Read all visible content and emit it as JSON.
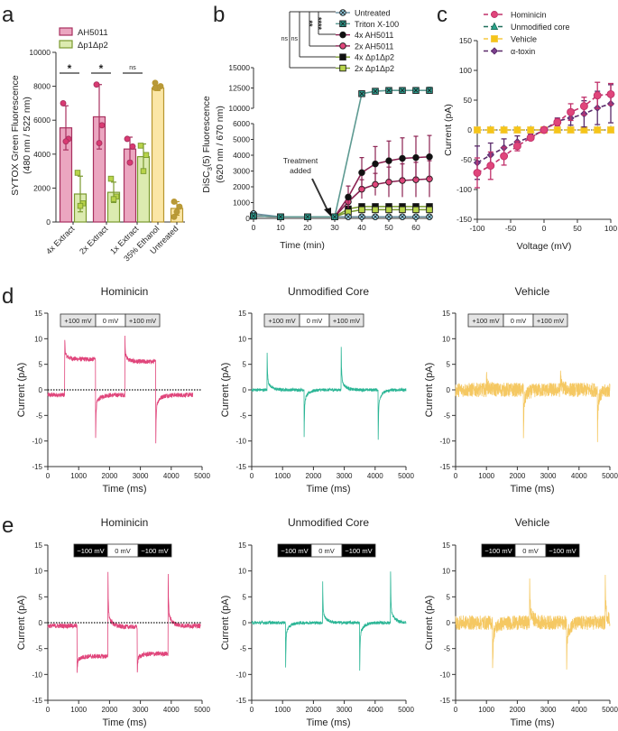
{
  "panel_labels": {
    "a": "a",
    "b": "b",
    "c": "c",
    "d": "d",
    "e": "e"
  },
  "chart_data": [
    {
      "id": "a",
      "type": "bar",
      "ylabel": [
        "SYTOX Green Fluorescence",
        "(480 nm / 522 nm)"
      ],
      "ylim": [
        0,
        10000
      ],
      "yticks": [
        0,
        2000,
        4000,
        6000,
        8000,
        10000
      ],
      "categories": [
        "4x Extract",
        "2x Extract",
        "1x Extract",
        "35% Ethanol",
        "Untreated"
      ],
      "legend": [
        "AH5011",
        "Δp1Δp2"
      ],
      "significance": [
        "*",
        "*",
        "ns"
      ],
      "series": [
        {
          "name": "AH5011",
          "fill": "#eba6c0",
          "stroke": "#a8305f",
          "dot": "#d93a72",
          "values": [
            5550,
            6200,
            4300,
            null,
            null
          ],
          "errors": [
            1300,
            1900,
            700,
            null,
            null
          ],
          "points": [
            [
              7000,
              4900,
              4750
            ],
            [
              8100,
              5700,
              4650
            ],
            [
              4900,
              4450,
              3500
            ],
            null,
            null
          ]
        },
        {
          "name": "Δp1Δp2",
          "fill": "#dcebb0",
          "stroke": "#7a9a2e",
          "dot": "#b8d34a",
          "values": [
            1650,
            1750,
            3850,
            null,
            null
          ],
          "errors": [
            1050,
            600,
            750,
            null,
            null
          ],
          "points": [
            [
              2900,
              1100,
              950
            ],
            [
              2550,
              1500,
              1350
            ],
            [
              4500,
              3950,
              3000
            ],
            null,
            null
          ]
        },
        {
          "fill": "#fbe6a6",
          "stroke": "#b8962e",
          "dot": "#b89a3a",
          "values": [
            null,
            null,
            null,
            7900,
            800
          ],
          "errors": [
            null,
            null,
            null,
            150,
            400
          ],
          "points": [
            null,
            null,
            null,
            [
              8200,
              8000,
              7900,
              7900
            ],
            [
              1200,
              900,
              600,
              300
            ]
          ]
        }
      ]
    },
    {
      "id": "b",
      "type": "line",
      "xlabel": "Time (min)",
      "ylabel_prefix": "DiSC",
      "ylabel_sub": "3",
      "ylabel_suffix": "(5) Fluorescence",
      "ylabel2": "(620 nm / 670 nm)",
      "xlim": [
        0,
        65
      ],
      "xticks": [
        0,
        10,
        20,
        30,
        40,
        50,
        60
      ],
      "yticks_lower": [
        0,
        1000,
        2000,
        3000,
        4000,
        5000,
        6000
      ],
      "yticks_upper": [
        10000,
        12500,
        15000
      ],
      "y_axis_break": [
        6000,
        10000
      ],
      "annotation": [
        "Treatment",
        "added"
      ],
      "brackets": [
        "****",
        "**",
        "ns",
        "ns"
      ],
      "x": [
        0,
        10,
        20,
        30,
        35,
        40,
        45,
        50,
        55,
        60,
        65
      ],
      "series": [
        {
          "name": "Untreated",
          "line": "#6a8fa0",
          "fill": "#9ad8ee",
          "marker": "circle-x",
          "values": [
            300,
            100,
            100,
            100,
            100,
            100,
            100,
            100,
            100,
            100,
            100
          ],
          "errors": [
            60,
            0,
            0,
            0,
            0,
            0,
            0,
            0,
            0,
            0,
            0
          ]
        },
        {
          "name": "Triton X-100",
          "line": "#5e9a92",
          "fill": "#2a9d8f",
          "marker": "square-x",
          "values": [
            150,
            100,
            100,
            100,
            null,
            11800,
            12100,
            12200,
            12200,
            12200,
            12200
          ],
          "errors": [
            0,
            0,
            0,
            0,
            null,
            200,
            200,
            250,
            300,
            350,
            400
          ]
        },
        {
          "name": "4x AH5011",
          "line": "#8b2252",
          "fill": "#111111",
          "marker": "circle",
          "values": [
            150,
            100,
            100,
            100,
            1350,
            2900,
            3450,
            3650,
            3800,
            3850,
            3900
          ],
          "errors": [
            0,
            0,
            0,
            0,
            700,
            950,
            1100,
            1250,
            1300,
            1350,
            1350
          ]
        },
        {
          "name": "2x AH5011",
          "line": "#8b2252",
          "fill": "#e0457b",
          "marker": "circle",
          "values": [
            150,
            100,
            100,
            100,
            1050,
            1850,
            2150,
            2300,
            2400,
            2450,
            2500
          ],
          "errors": [
            0,
            0,
            0,
            0,
            400,
            600,
            700,
            950,
            1050,
            1100,
            1150
          ]
        },
        {
          "name": "4x Δp1Δp2",
          "line": "#7a9a2e",
          "fill": "#111111",
          "marker": "square",
          "values": [
            150,
            100,
            100,
            100,
            600,
            750,
            750,
            750,
            750,
            750,
            750
          ],
          "errors": [
            0,
            0,
            0,
            0,
            80,
            80,
            80,
            80,
            80,
            80,
            80
          ]
        },
        {
          "name": "2x Δp1Δp2",
          "line": "#7a9a2e",
          "fill": "#b9d64a",
          "marker": "square",
          "values": [
            150,
            100,
            100,
            100,
            400,
            550,
            550,
            550,
            550,
            550,
            550
          ],
          "errors": [
            0,
            0,
            0,
            0,
            60,
            60,
            60,
            60,
            60,
            60,
            60
          ]
        }
      ]
    },
    {
      "id": "c",
      "type": "line",
      "xlabel": "Voltage (mV)",
      "ylabel": "Current (pA)",
      "xlim": [
        -100,
        100
      ],
      "ylim": [
        -150,
        150
      ],
      "xticks": [
        -100,
        -50,
        0,
        50,
        100
      ],
      "yticks": [
        -150,
        -100,
        -50,
        0,
        50,
        100,
        150
      ],
      "x": [
        -100,
        -80,
        -60,
        -40,
        -20,
        0,
        20,
        40,
        60,
        80,
        100
      ],
      "series": [
        {
          "name": "Hominicin",
          "color": "#c0306a",
          "fill": "#e0457b",
          "marker": "circle",
          "values": [
            -72,
            -60,
            -44,
            -27,
            -13,
            0,
            13,
            30,
            40,
            58,
            60
          ],
          "errors": [
            25,
            23,
            15,
            8,
            3,
            2,
            6,
            14,
            15,
            22,
            18
          ]
        },
        {
          "name": "Unmodified core",
          "color": "#1f6f5a",
          "fill": "#2aa58d",
          "marker": "triangle",
          "values": [
            0,
            0,
            0,
            0,
            0,
            0,
            0,
            0,
            0,
            0,
            0
          ],
          "errors": [
            0,
            0,
            0,
            0,
            0,
            0,
            0,
            0,
            0,
            0,
            0
          ]
        },
        {
          "name": "Vehicle",
          "color": "#f5c842",
          "fill": "#f5c518",
          "marker": "square",
          "values": [
            0,
            0,
            0,
            0,
            0,
            0,
            0,
            0,
            0,
            0,
            0
          ],
          "errors": [
            0,
            0,
            0,
            0,
            0,
            0,
            0,
            0,
            0,
            0,
            0
          ]
        },
        {
          "name": "α-toxin",
          "color": "#5a2a6a",
          "fill": "#7b3f8c",
          "marker": "diamond",
          "values": [
            -55,
            -42,
            -30,
            -20,
            -12,
            0,
            15,
            20,
            27,
            37,
            44
          ],
          "errors": [
            28,
            20,
            15,
            10,
            5,
            2,
            5,
            12,
            22,
            28,
            32
          ]
        }
      ]
    },
    {
      "id": "d1",
      "type": "line",
      "title": "Hominicin",
      "xlabel": "Time (ms)",
      "ylabel": "Current (pA)",
      "xlim": [
        0,
        5000
      ],
      "ylim": [
        -15,
        15
      ],
      "xticks": [
        0,
        1000,
        2000,
        3000,
        4000,
        5000
      ],
      "yticks": [
        -15,
        -10,
        -5,
        0,
        5,
        10,
        15
      ],
      "protocol": [
        "+100 mV",
        "0 mV",
        "+100 mV"
      ],
      "protocol_colors": [
        "#e4e4e4",
        "#ffffff",
        "#e4e4e4"
      ],
      "protocol_text": "#222222",
      "color": "#e0457b",
      "zero_line": true,
      "noise": 0.45,
      "end": 4700,
      "segments": [
        [
          0,
          550,
          -1
        ],
        [
          550,
          1550,
          6
        ],
        [
          1550,
          2500,
          -1
        ],
        [
          2500,
          3500,
          5.5
        ],
        [
          3500,
          4700,
          -1
        ]
      ],
      "spikes": [
        [
          550,
          10
        ],
        [
          1550,
          -9
        ],
        [
          2500,
          10.5
        ],
        [
          3500,
          -10
        ]
      ]
    },
    {
      "id": "d2",
      "type": "line",
      "title": "Unmodified Core",
      "xlabel": "Time (ms)",
      "ylabel": "Current (pA)",
      "xlim": [
        0,
        5000
      ],
      "ylim": [
        -15,
        15
      ],
      "xticks": [
        0,
        1000,
        2000,
        3000,
        4000,
        5000
      ],
      "yticks": [
        -15,
        -10,
        -5,
        0,
        5,
        10,
        15
      ],
      "protocol": [
        "+100 mV",
        "0 mV",
        "+100 mV"
      ],
      "protocol_colors": [
        "#e4e4e4",
        "#ffffff",
        "#e4e4e4"
      ],
      "protocol_text": "#222222",
      "color": "#2ab595",
      "zero_line": false,
      "noise": 0.3,
      "end": 5000,
      "segments": [
        [
          0,
          5000,
          0
        ]
      ],
      "spikes": [
        [
          500,
          7.5
        ],
        [
          1700,
          -9
        ],
        [
          2900,
          8.5
        ],
        [
          4100,
          -10
        ]
      ]
    },
    {
      "id": "d3",
      "type": "line",
      "title": "Vehicle",
      "xlabel": "Time (ms)",
      "ylabel": "Current (pA)",
      "xlim": [
        0,
        5000
      ],
      "ylim": [
        -15,
        15
      ],
      "xticks": [
        0,
        1000,
        2000,
        3000,
        4000,
        5000
      ],
      "yticks": [
        -15,
        -10,
        -5,
        0,
        5,
        10,
        15
      ],
      "protocol": [
        "+100 mV",
        "0 mV",
        "+100 mV"
      ],
      "protocol_colors": [
        "#e4e4e4",
        "#ffffff",
        "#e4e4e4"
      ],
      "protocol_text": "#222222",
      "color": "#f5c862",
      "zero_line": false,
      "noise": 1.4,
      "end": 5000,
      "segments": [
        [
          0,
          5000,
          0
        ]
      ],
      "spikes": [
        [
          1000,
          3
        ],
        [
          2200,
          -9
        ],
        [
          3400,
          4
        ],
        [
          4600,
          -9
        ]
      ]
    },
    {
      "id": "e1",
      "type": "line",
      "title": "Hominicin",
      "xlabel": "Time (ms)",
      "ylabel": "Current (pA)",
      "xlim": [
        0,
        5000
      ],
      "ylim": [
        -15,
        15
      ],
      "xticks": [
        0,
        1000,
        2000,
        3000,
        4000,
        5000
      ],
      "yticks": [
        -15,
        -10,
        -5,
        0,
        5,
        10,
        15
      ],
      "protocol": [
        "−100 mV",
        "0 mV",
        "−100 mV"
      ],
      "protocol_colors": [
        "#000000",
        "#ffffff",
        "#000000"
      ],
      "protocol_text": "#ffffff",
      "color": "#e0457b",
      "zero_line": true,
      "noise": 0.45,
      "end": 4950,
      "segments": [
        [
          0,
          950,
          -0.6
        ],
        [
          950,
          1950,
          -6.5
        ],
        [
          1950,
          2900,
          -0.8
        ],
        [
          2900,
          3900,
          -6
        ],
        [
          3900,
          4950,
          -0.6
        ]
      ],
      "spikes": [
        [
          950,
          -10
        ],
        [
          1950,
          9.5
        ],
        [
          2900,
          -10
        ],
        [
          3900,
          9.5
        ]
      ]
    },
    {
      "id": "e2",
      "type": "line",
      "title": "Unmodified Core",
      "xlabel": "Time (ms)",
      "ylabel": "Current (pA)",
      "xlim": [
        0,
        5000
      ],
      "ylim": [
        -15,
        15
      ],
      "xticks": [
        0,
        1000,
        2000,
        3000,
        4000,
        5000
      ],
      "yticks": [
        -15,
        -10,
        -5,
        0,
        5,
        10,
        15
      ],
      "protocol": [
        "−100 mV",
        "0 mV",
        "−100 mV"
      ],
      "protocol_colors": [
        "#000000",
        "#ffffff",
        "#000000"
      ],
      "protocol_text": "#ffffff",
      "color": "#2ab595",
      "zero_line": false,
      "noise": 0.3,
      "end": 5000,
      "segments": [
        [
          0,
          5000,
          0
        ]
      ],
      "spikes": [
        [
          1100,
          -8.5
        ],
        [
          2300,
          8
        ],
        [
          3500,
          -9.5
        ],
        [
          4500,
          10
        ]
      ]
    },
    {
      "id": "e3",
      "type": "line",
      "title": "Vehicle",
      "xlabel": "Time (ms)",
      "ylabel": "Current (pA)",
      "xlim": [
        0,
        5000
      ],
      "ylim": [
        -15,
        15
      ],
      "xticks": [
        0,
        1000,
        2000,
        3000,
        4000,
        5000
      ],
      "yticks": [
        -15,
        -10,
        -5,
        0,
        5,
        10,
        15
      ],
      "protocol": [
        "−100 mV",
        "0 mV",
        "−100 mV"
      ],
      "protocol_colors": [
        "#000000",
        "#ffffff",
        "#000000"
      ],
      "protocol_text": "#ffffff",
      "color": "#f5c862",
      "zero_line": false,
      "noise": 1.4,
      "end": 5000,
      "segments": [
        [
          0,
          5000,
          0
        ]
      ],
      "spikes": [
        [
          1200,
          -10
        ],
        [
          2400,
          9
        ],
        [
          3600,
          -9
        ],
        [
          4850,
          9
        ]
      ]
    }
  ]
}
